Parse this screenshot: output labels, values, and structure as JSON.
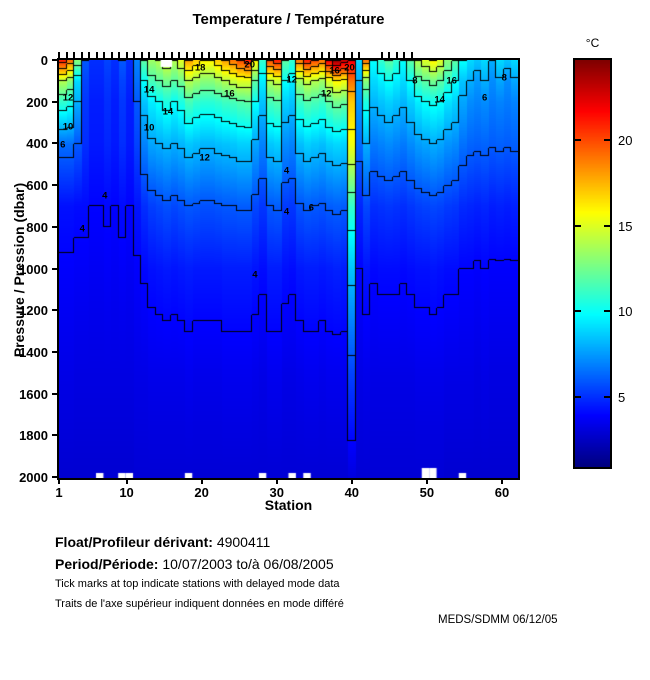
{
  "title": "Temperature / Température",
  "axes": {
    "x_label": "Station",
    "y_label": "Pressure / Pression (dbar)",
    "x_ticks": [
      1,
      10,
      20,
      30,
      40,
      50,
      60
    ],
    "y_ticks": [
      0,
      200,
      400,
      600,
      800,
      1000,
      1200,
      1400,
      1600,
      1800,
      2000
    ]
  },
  "colorbar": {
    "label": "°C",
    "ticks": [
      5,
      10,
      15,
      20
    ],
    "vmin": 1.0,
    "vmax": 24.65,
    "colormap": "jet",
    "top_color": "#800000",
    "bottom_color": "#000090"
  },
  "chart_data": {
    "type": "heatmap",
    "x_name": "station",
    "y_name": "pressure_dbar",
    "z_name": "temperature_degC",
    "station_range": [
      1,
      62
    ],
    "pressure_range": [
      0,
      2000
    ],
    "contour_interval": 2,
    "depths": [
      0,
      100,
      200,
      400,
      700,
      1000,
      1500,
      2000
    ],
    "grid": [
      [
        21,
        19,
        13,
        6,
        5,
        5,
        5.5,
        5,
        6,
        5,
        7,
        12,
        13.5,
        14,
        15,
        14,
        15,
        18,
        17,
        16,
        16,
        17,
        18,
        19,
        20,
        21,
        16,
        11,
        20,
        21,
        12,
        11,
        19,
        21,
        20,
        19,
        22,
        24,
        23,
        22,
        9,
        19,
        10,
        11,
        12,
        11,
        10,
        12,
        14,
        15,
        16,
        15,
        13,
        12,
        10,
        9,
        8.5,
        9,
        8,
        9,
        8.5,
        9
      ],
      [
        14,
        13,
        9,
        5.5,
        4.8,
        4.8,
        5.2,
        4.8,
        5.5,
        4.8,
        6.5,
        10,
        11.5,
        12,
        12.5,
        12,
        12.5,
        14,
        13.5,
        13,
        13,
        13.5,
        14,
        14.5,
        15,
        15,
        12,
        9.5,
        14,
        14.5,
        10,
        9.5,
        13.5,
        14.5,
        14,
        13.5,
        15,
        16,
        15.5,
        19,
        8,
        13,
        9,
        9.5,
        10,
        9.5,
        9,
        10,
        11.5,
        12,
        12.5,
        12,
        11,
        10,
        8.5,
        8,
        7.5,
        8,
        7.2,
        7.8,
        7.2,
        7.8
      ],
      [
        11,
        10.5,
        8,
        5.2,
        4.6,
        4.6,
        5,
        4.6,
        5.2,
        4.6,
        6,
        8.5,
        9.5,
        10,
        10.5,
        10,
        10.5,
        11.5,
        11,
        10.8,
        10.8,
        11,
        11.3,
        11.5,
        11.8,
        12,
        10,
        8.5,
        11.5,
        11.8,
        8.8,
        8.5,
        11.2,
        11.8,
        11.5,
        11.2,
        12,
        12.5,
        12.2,
        17,
        7.5,
        10.5,
        8.2,
        8.5,
        8.8,
        8.5,
        8.2,
        8.8,
        9.5,
        10,
        10.2,
        10,
        9.2,
        8.8,
        7.8,
        7.2,
        7,
        7.2,
        6.8,
        7,
        6.8,
        7
      ],
      [
        6.5,
        6.5,
        6,
        5,
        4.5,
        4.5,
        4.8,
        4.5,
        5,
        4.5,
        5.5,
        7,
        7.8,
        8,
        8.2,
        8,
        8.2,
        8.6,
        8.4,
        8.2,
        8.2,
        8.4,
        8.5,
        8.6,
        8.8,
        8.8,
        7.8,
        7,
        8.6,
        8.8,
        7.2,
        7,
        8.4,
        8.8,
        8.6,
        8.4,
        8.8,
        9,
        8.9,
        15.5,
        6.5,
        8,
        6.8,
        7,
        7.2,
        7,
        6.8,
        7.2,
        7.6,
        7.8,
        8,
        7.8,
        7.4,
        7.2,
        6.6,
        6.3,
        6.2,
        6.3,
        6.1,
        6.2,
        6.1,
        6.2
      ],
      [
        4.3,
        4.3,
        4.2,
        4.2,
        4,
        4,
        4.1,
        4,
        4.2,
        4,
        4.4,
        5,
        5.4,
        5.6,
        5.8,
        5.6,
        5.8,
        6,
        5.9,
        5.8,
        5.8,
        5.9,
        6,
        6,
        6.1,
        6.1,
        5.6,
        5.2,
        6,
        6.1,
        5.3,
        5.2,
        5.9,
        6.1,
        6,
        5.9,
        6.1,
        6.2,
        6.1,
        11,
        4.8,
        5.6,
        5,
        5.1,
        5.2,
        5.1,
        5,
        5.2,
        5.4,
        5.5,
        5.6,
        5.5,
        5.3,
        5.2,
        4.9,
        4.8,
        4.7,
        4.8,
        4.6,
        4.7,
        4.6,
        4.7
      ],
      [
        3.9,
        3.9,
        3.8,
        3.8,
        3.7,
        3.7,
        3.8,
        3.7,
        3.8,
        3.7,
        3.9,
        4.1,
        4.3,
        4.4,
        4.5,
        4.4,
        4.5,
        4.6,
        4.5,
        4.5,
        4.5,
        4.5,
        4.6,
        4.6,
        4.6,
        4.6,
        4.4,
        4.2,
        4.6,
        4.6,
        4.3,
        4.2,
        4.5,
        4.6,
        4.6,
        4.5,
        4.6,
        4.7,
        4.6,
        8.5,
        4,
        4.4,
        4.1,
        4.2,
        4.2,
        4.2,
        4.1,
        4.2,
        4.3,
        4.3,
        4.4,
        4.3,
        4.2,
        4.2,
        4,
        4,
        3.9,
        4,
        3.9,
        3.9,
        3.9,
        3.9
      ],
      [
        3.4,
        3.4,
        3.3,
        3.3,
        3.3,
        3.3,
        3.3,
        3.3,
        3.3,
        3.3,
        3.4,
        3.4,
        3.5,
        3.5,
        3.5,
        3.5,
        3.5,
        3.6,
        3.5,
        3.5,
        3.5,
        3.5,
        3.6,
        3.6,
        3.6,
        3.6,
        3.5,
        3.4,
        3.6,
        3.6,
        3.4,
        3.4,
        3.5,
        3.6,
        3.6,
        3.5,
        3.6,
        3.6,
        3.6,
        5.5,
        3.4,
        3.5,
        3.4,
        3.4,
        3.4,
        3.4,
        3.4,
        3.4,
        3.5,
        3.5,
        3.5,
        3.5,
        3.4,
        3.4,
        3.4,
        3.4,
        3.3,
        3.4,
        3.3,
        3.3,
        3.3,
        3.3
      ],
      [
        2.9,
        2.9,
        2.9,
        2.9,
        2.9,
        2.9,
        2.9,
        2.9,
        2.9,
        2.9,
        3,
        3,
        3,
        3,
        3,
        3,
        3,
        3,
        3,
        3,
        3,
        3,
        3,
        3,
        3,
        3,
        3,
        3,
        3,
        3,
        3,
        3,
        3,
        3,
        3,
        3,
        3,
        3,
        3,
        3.2,
        3,
        3,
        3,
        3,
        3,
        3,
        3,
        3,
        3,
        3,
        3,
        3,
        2.9,
        2.9,
        2.9,
        2.9,
        2.9,
        2.9,
        2.9,
        2.9,
        2.9,
        2.9
      ]
    ],
    "contour_labels": [
      {
        "s": 2.2,
        "p": 180,
        "l": "12"
      },
      {
        "s": 2.2,
        "p": 320,
        "l": "10"
      },
      {
        "s": 1.5,
        "p": 410,
        "l": "6"
      },
      {
        "s": 4.1,
        "p": 810,
        "l": "4"
      },
      {
        "s": 7.1,
        "p": 650,
        "l": "4"
      },
      {
        "s": 13,
        "p": 145,
        "l": "14"
      },
      {
        "s": 13,
        "p": 325,
        "l": "10"
      },
      {
        "s": 15.5,
        "p": 250,
        "l": "14"
      },
      {
        "s": 19.8,
        "p": 40,
        "l": "18"
      },
      {
        "s": 20.4,
        "p": 470,
        "l": "12"
      },
      {
        "s": 23.7,
        "p": 165,
        "l": "16"
      },
      {
        "s": 26.4,
        "p": 25,
        "l": "20"
      },
      {
        "s": 27.1,
        "p": 1030,
        "l": "4"
      },
      {
        "s": 31.3,
        "p": 530,
        "l": "4"
      },
      {
        "s": 31.3,
        "p": 730,
        "l": "4"
      },
      {
        "s": 32,
        "p": 95,
        "l": "12"
      },
      {
        "s": 34.6,
        "p": 710,
        "l": "6"
      },
      {
        "s": 36.6,
        "p": 165,
        "l": "12"
      },
      {
        "s": 37.7,
        "p": 55,
        "l": "16"
      },
      {
        "s": 39.7,
        "p": 40,
        "l": "20"
      },
      {
        "s": 48.4,
        "p": 100,
        "l": "8"
      },
      {
        "s": 51.7,
        "p": 190,
        "l": "14"
      },
      {
        "s": 53.3,
        "p": 100,
        "l": "16"
      },
      {
        "s": 57.7,
        "p": 180,
        "l": "6"
      },
      {
        "s": 60.3,
        "p": 85,
        "l": "8"
      }
    ],
    "delayed_mode_tick_stations": [
      1,
      2,
      3,
      4,
      5,
      6,
      7,
      8,
      9,
      10,
      11,
      12,
      13,
      14,
      15,
      16,
      17,
      18,
      19,
      20,
      21,
      22,
      23,
      24,
      25,
      26,
      27,
      28,
      29,
      30,
      31,
      32,
      33,
      34,
      35,
      36,
      37,
      38,
      39,
      40,
      41,
      44,
      45,
      46,
      47,
      48
    ],
    "missing_data_gaps": {
      "top_stations": [
        15
      ],
      "bottom_stations": [
        6,
        9,
        10,
        18,
        28,
        32,
        34,
        55
      ],
      "bottom_large_stations": [
        50,
        51
      ]
    }
  },
  "footer": {
    "float_label": "Float/Profileur dérivant:",
    "float_value": "4900411",
    "period_label": "Period/Période:",
    "period_value": "10/07/2003  to/à  06/08/2005",
    "note_en": "Tick marks at top indicate stations with delayed mode data",
    "note_fr": "Traits de l'axe supérieur indiquent données en mode différé",
    "credit": "MEDS/SDMM  06/12/05"
  }
}
